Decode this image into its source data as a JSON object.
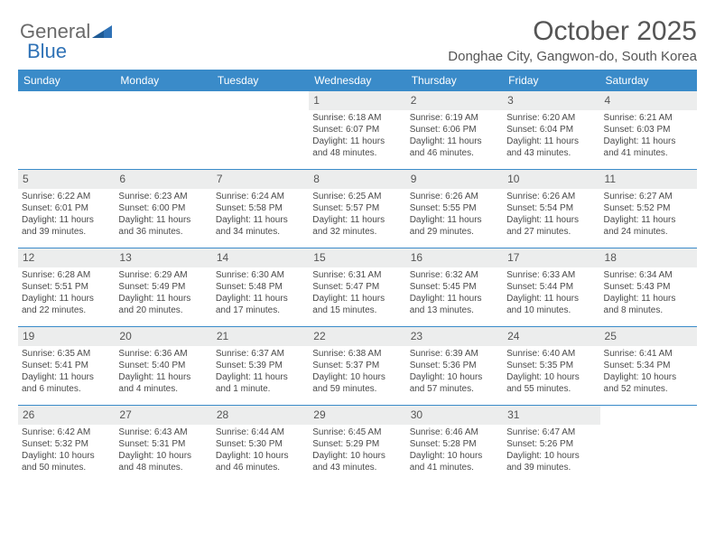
{
  "brand": {
    "part1": "General",
    "part2": "Blue"
  },
  "title": "October 2025",
  "location": "Donghae City, Gangwon-do, South Korea",
  "colors": {
    "header_bg": "#3a8bc9",
    "daynum_bg": "#eceded",
    "rule": "#3a8bc9",
    "brand_blue": "#2f72b6",
    "text": "#4a4a4a"
  },
  "day_names": [
    "Sunday",
    "Monday",
    "Tuesday",
    "Wednesday",
    "Thursday",
    "Friday",
    "Saturday"
  ],
  "weeks": [
    [
      null,
      null,
      null,
      {
        "n": "1",
        "sr": "Sunrise: 6:18 AM",
        "ss": "Sunset: 6:07 PM",
        "d1": "Daylight: 11 hours",
        "d2": "and 48 minutes."
      },
      {
        "n": "2",
        "sr": "Sunrise: 6:19 AM",
        "ss": "Sunset: 6:06 PM",
        "d1": "Daylight: 11 hours",
        "d2": "and 46 minutes."
      },
      {
        "n": "3",
        "sr": "Sunrise: 6:20 AM",
        "ss": "Sunset: 6:04 PM",
        "d1": "Daylight: 11 hours",
        "d2": "and 43 minutes."
      },
      {
        "n": "4",
        "sr": "Sunrise: 6:21 AM",
        "ss": "Sunset: 6:03 PM",
        "d1": "Daylight: 11 hours",
        "d2": "and 41 minutes."
      }
    ],
    [
      {
        "n": "5",
        "sr": "Sunrise: 6:22 AM",
        "ss": "Sunset: 6:01 PM",
        "d1": "Daylight: 11 hours",
        "d2": "and 39 minutes."
      },
      {
        "n": "6",
        "sr": "Sunrise: 6:23 AM",
        "ss": "Sunset: 6:00 PM",
        "d1": "Daylight: 11 hours",
        "d2": "and 36 minutes."
      },
      {
        "n": "7",
        "sr": "Sunrise: 6:24 AM",
        "ss": "Sunset: 5:58 PM",
        "d1": "Daylight: 11 hours",
        "d2": "and 34 minutes."
      },
      {
        "n": "8",
        "sr": "Sunrise: 6:25 AM",
        "ss": "Sunset: 5:57 PM",
        "d1": "Daylight: 11 hours",
        "d2": "and 32 minutes."
      },
      {
        "n": "9",
        "sr": "Sunrise: 6:26 AM",
        "ss": "Sunset: 5:55 PM",
        "d1": "Daylight: 11 hours",
        "d2": "and 29 minutes."
      },
      {
        "n": "10",
        "sr": "Sunrise: 6:26 AM",
        "ss": "Sunset: 5:54 PM",
        "d1": "Daylight: 11 hours",
        "d2": "and 27 minutes."
      },
      {
        "n": "11",
        "sr": "Sunrise: 6:27 AM",
        "ss": "Sunset: 5:52 PM",
        "d1": "Daylight: 11 hours",
        "d2": "and 24 minutes."
      }
    ],
    [
      {
        "n": "12",
        "sr": "Sunrise: 6:28 AM",
        "ss": "Sunset: 5:51 PM",
        "d1": "Daylight: 11 hours",
        "d2": "and 22 minutes."
      },
      {
        "n": "13",
        "sr": "Sunrise: 6:29 AM",
        "ss": "Sunset: 5:49 PM",
        "d1": "Daylight: 11 hours",
        "d2": "and 20 minutes."
      },
      {
        "n": "14",
        "sr": "Sunrise: 6:30 AM",
        "ss": "Sunset: 5:48 PM",
        "d1": "Daylight: 11 hours",
        "d2": "and 17 minutes."
      },
      {
        "n": "15",
        "sr": "Sunrise: 6:31 AM",
        "ss": "Sunset: 5:47 PM",
        "d1": "Daylight: 11 hours",
        "d2": "and 15 minutes."
      },
      {
        "n": "16",
        "sr": "Sunrise: 6:32 AM",
        "ss": "Sunset: 5:45 PM",
        "d1": "Daylight: 11 hours",
        "d2": "and 13 minutes."
      },
      {
        "n": "17",
        "sr": "Sunrise: 6:33 AM",
        "ss": "Sunset: 5:44 PM",
        "d1": "Daylight: 11 hours",
        "d2": "and 10 minutes."
      },
      {
        "n": "18",
        "sr": "Sunrise: 6:34 AM",
        "ss": "Sunset: 5:43 PM",
        "d1": "Daylight: 11 hours",
        "d2": "and 8 minutes."
      }
    ],
    [
      {
        "n": "19",
        "sr": "Sunrise: 6:35 AM",
        "ss": "Sunset: 5:41 PM",
        "d1": "Daylight: 11 hours",
        "d2": "and 6 minutes."
      },
      {
        "n": "20",
        "sr": "Sunrise: 6:36 AM",
        "ss": "Sunset: 5:40 PM",
        "d1": "Daylight: 11 hours",
        "d2": "and 4 minutes."
      },
      {
        "n": "21",
        "sr": "Sunrise: 6:37 AM",
        "ss": "Sunset: 5:39 PM",
        "d1": "Daylight: 11 hours",
        "d2": "and 1 minute."
      },
      {
        "n": "22",
        "sr": "Sunrise: 6:38 AM",
        "ss": "Sunset: 5:37 PM",
        "d1": "Daylight: 10 hours",
        "d2": "and 59 minutes."
      },
      {
        "n": "23",
        "sr": "Sunrise: 6:39 AM",
        "ss": "Sunset: 5:36 PM",
        "d1": "Daylight: 10 hours",
        "d2": "and 57 minutes."
      },
      {
        "n": "24",
        "sr": "Sunrise: 6:40 AM",
        "ss": "Sunset: 5:35 PM",
        "d1": "Daylight: 10 hours",
        "d2": "and 55 minutes."
      },
      {
        "n": "25",
        "sr": "Sunrise: 6:41 AM",
        "ss": "Sunset: 5:34 PM",
        "d1": "Daylight: 10 hours",
        "d2": "and 52 minutes."
      }
    ],
    [
      {
        "n": "26",
        "sr": "Sunrise: 6:42 AM",
        "ss": "Sunset: 5:32 PM",
        "d1": "Daylight: 10 hours",
        "d2": "and 50 minutes."
      },
      {
        "n": "27",
        "sr": "Sunrise: 6:43 AM",
        "ss": "Sunset: 5:31 PM",
        "d1": "Daylight: 10 hours",
        "d2": "and 48 minutes."
      },
      {
        "n": "28",
        "sr": "Sunrise: 6:44 AM",
        "ss": "Sunset: 5:30 PM",
        "d1": "Daylight: 10 hours",
        "d2": "and 46 minutes."
      },
      {
        "n": "29",
        "sr": "Sunrise: 6:45 AM",
        "ss": "Sunset: 5:29 PM",
        "d1": "Daylight: 10 hours",
        "d2": "and 43 minutes."
      },
      {
        "n": "30",
        "sr": "Sunrise: 6:46 AM",
        "ss": "Sunset: 5:28 PM",
        "d1": "Daylight: 10 hours",
        "d2": "and 41 minutes."
      },
      {
        "n": "31",
        "sr": "Sunrise: 6:47 AM",
        "ss": "Sunset: 5:26 PM",
        "d1": "Daylight: 10 hours",
        "d2": "and 39 minutes."
      },
      null
    ]
  ]
}
